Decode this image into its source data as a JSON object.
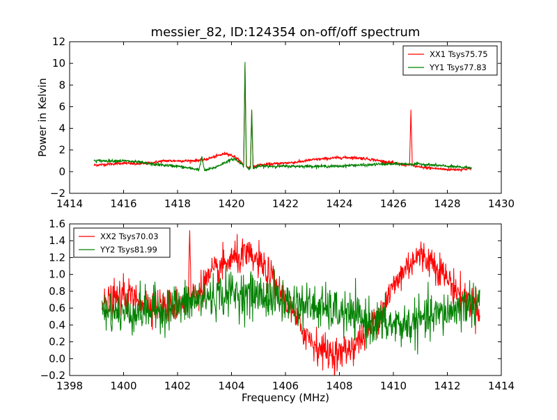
{
  "figure": {
    "title": "messier_82, ID:124354 on-off/off spectrum"
  },
  "chart_data": [
    {
      "type": "line",
      "title": "messier_82, ID:124354 on-off/off spectrum",
      "xlabel": "",
      "ylabel": "Power in Kelvin",
      "xlim": [
        1414,
        1430
      ],
      "ylim": [
        -2,
        12
      ],
      "xticks": [
        1414,
        1416,
        1418,
        1420,
        1422,
        1424,
        1426,
        1428,
        1430
      ],
      "yticks": [
        -2,
        0,
        2,
        4,
        6,
        8,
        10,
        12
      ],
      "xtick_labels": [
        "1414",
        "1416",
        "1418",
        "1420",
        "1422",
        "1424",
        "1426",
        "1428",
        "1430"
      ],
      "ytick_labels": [
        "−2",
        "0",
        "2",
        "4",
        "6",
        "8",
        "10",
        "12"
      ],
      "grid": false,
      "legend_position": "top-right",
      "x_range_data": [
        1414.9,
        1428.9
      ],
      "series": [
        {
          "name": "XX1 Tsys75.75",
          "color": "#ff0000",
          "x": [
            1414.9,
            1415.5,
            1416.0,
            1416.5,
            1417.0,
            1417.5,
            1418.0,
            1418.5,
            1419.0,
            1419.4,
            1419.8,
            1420.1,
            1420.4,
            1420.45,
            1420.5,
            1420.55,
            1420.6,
            1420.7,
            1420.75,
            1420.8,
            1420.85,
            1420.9,
            1421.0,
            1421.5,
            1422.0,
            1422.5,
            1423.0,
            1423.5,
            1424.0,
            1424.5,
            1425.0,
            1425.5,
            1426.0,
            1426.5,
            1426.6,
            1426.65,
            1426.7,
            1426.8,
            1427.0,
            1427.5,
            1428.0,
            1428.5,
            1428.9
          ],
          "y": [
            0.6,
            0.7,
            0.8,
            0.7,
            0.8,
            1.0,
            1.0,
            1.0,
            1.1,
            1.4,
            1.7,
            1.4,
            0.8,
            0.5,
            9.8,
            0.5,
            0.4,
            0.4,
            5.6,
            0.5,
            0.4,
            0.5,
            0.6,
            0.7,
            0.8,
            0.9,
            1.1,
            1.2,
            1.3,
            1.3,
            1.2,
            1.0,
            0.8,
            0.6,
            0.6,
            5.7,
            0.6,
            0.5,
            0.4,
            0.3,
            0.2,
            0.2,
            0.3
          ]
        },
        {
          "name": "YY1 Tsys77.83",
          "color": "#008000",
          "x": [
            1414.9,
            1415.5,
            1416.0,
            1416.5,
            1417.0,
            1417.5,
            1418.0,
            1418.5,
            1418.8,
            1418.9,
            1419.0,
            1419.4,
            1419.8,
            1420.1,
            1420.4,
            1420.45,
            1420.5,
            1420.55,
            1420.6,
            1420.7,
            1420.75,
            1420.8,
            1420.85,
            1420.9,
            1421.0,
            1421.5,
            1422.0,
            1422.5,
            1423.0,
            1423.5,
            1424.0,
            1424.5,
            1425.0,
            1425.5,
            1426.0,
            1426.5,
            1427.0,
            1427.5,
            1428.0,
            1428.5,
            1428.9
          ],
          "y": [
            1.0,
            1.0,
            1.0,
            0.9,
            0.7,
            0.6,
            0.5,
            0.3,
            0.2,
            1.4,
            0.1,
            0.4,
            0.9,
            1.2,
            0.7,
            0.5,
            10.1,
            0.5,
            0.3,
            0.3,
            5.7,
            0.4,
            0.3,
            0.4,
            0.5,
            0.5,
            0.5,
            0.5,
            0.5,
            0.5,
            0.5,
            0.6,
            0.6,
            0.7,
            0.7,
            0.7,
            0.7,
            0.6,
            0.5,
            0.4,
            0.4
          ]
        }
      ]
    },
    {
      "type": "line",
      "title": "",
      "xlabel": "Frequency (MHz)",
      "ylabel": "",
      "xlim": [
        1398,
        1414
      ],
      "ylim": [
        -0.2,
        1.6
      ],
      "xticks": [
        1398,
        1400,
        1402,
        1404,
        1406,
        1408,
        1410,
        1412,
        1414
      ],
      "yticks": [
        -0.2,
        0.0,
        0.2,
        0.4,
        0.6,
        0.8,
        1.0,
        1.2,
        1.4,
        1.6
      ],
      "xtick_labels": [
        "1398",
        "1400",
        "1402",
        "1404",
        "1406",
        "1408",
        "1410",
        "1412",
        "1414"
      ],
      "ytick_labels": [
        "−0.2",
        "0.0",
        "0.2",
        "0.4",
        "0.6",
        "0.8",
        "1.0",
        "1.2",
        "1.4",
        "1.6"
      ],
      "grid": false,
      "legend_position": "top-left",
      "x_range_data": [
        1399.2,
        1413.2
      ],
      "series": [
        {
          "name": "XX2 Tsys70.03",
          "color": "#ff0000",
          "x": [
            1399.2,
            1399.6,
            1400.0,
            1400.5,
            1401.0,
            1401.5,
            1402.0,
            1402.3,
            1402.4,
            1402.45,
            1402.5,
            1402.8,
            1403.0,
            1403.5,
            1404.0,
            1404.5,
            1405.0,
            1405.5,
            1406.0,
            1406.5,
            1407.0,
            1407.5,
            1408.0,
            1408.5,
            1409.0,
            1409.5,
            1410.0,
            1410.5,
            1410.8,
            1411.0,
            1411.5,
            1412.0,
            1412.5,
            1413.2
          ],
          "y": [
            0.6,
            0.7,
            0.75,
            0.7,
            0.65,
            0.62,
            0.65,
            0.7,
            0.7,
            1.52,
            0.72,
            0.8,
            0.9,
            1.05,
            1.18,
            1.22,
            1.15,
            0.95,
            0.7,
            0.4,
            0.2,
            0.08,
            0.05,
            0.15,
            0.3,
            0.55,
            0.85,
            1.1,
            1.2,
            1.22,
            1.15,
            0.95,
            0.75,
            0.6
          ],
          "noise": 0.1
        },
        {
          "name": "YY2 Tsys81.99",
          "color": "#008000",
          "x": [
            1399.2,
            1400.0,
            1401.0,
            1402.0,
            1403.0,
            1404.0,
            1405.0,
            1406.0,
            1407.0,
            1408.0,
            1409.0,
            1410.0,
            1410.5,
            1411.0,
            1412.0,
            1413.2
          ],
          "y": [
            0.55,
            0.55,
            0.58,
            0.62,
            0.72,
            0.78,
            0.75,
            0.68,
            0.62,
            0.55,
            0.45,
            0.4,
            0.4,
            0.45,
            0.55,
            0.7
          ],
          "noise": 0.13
        }
      ]
    }
  ]
}
